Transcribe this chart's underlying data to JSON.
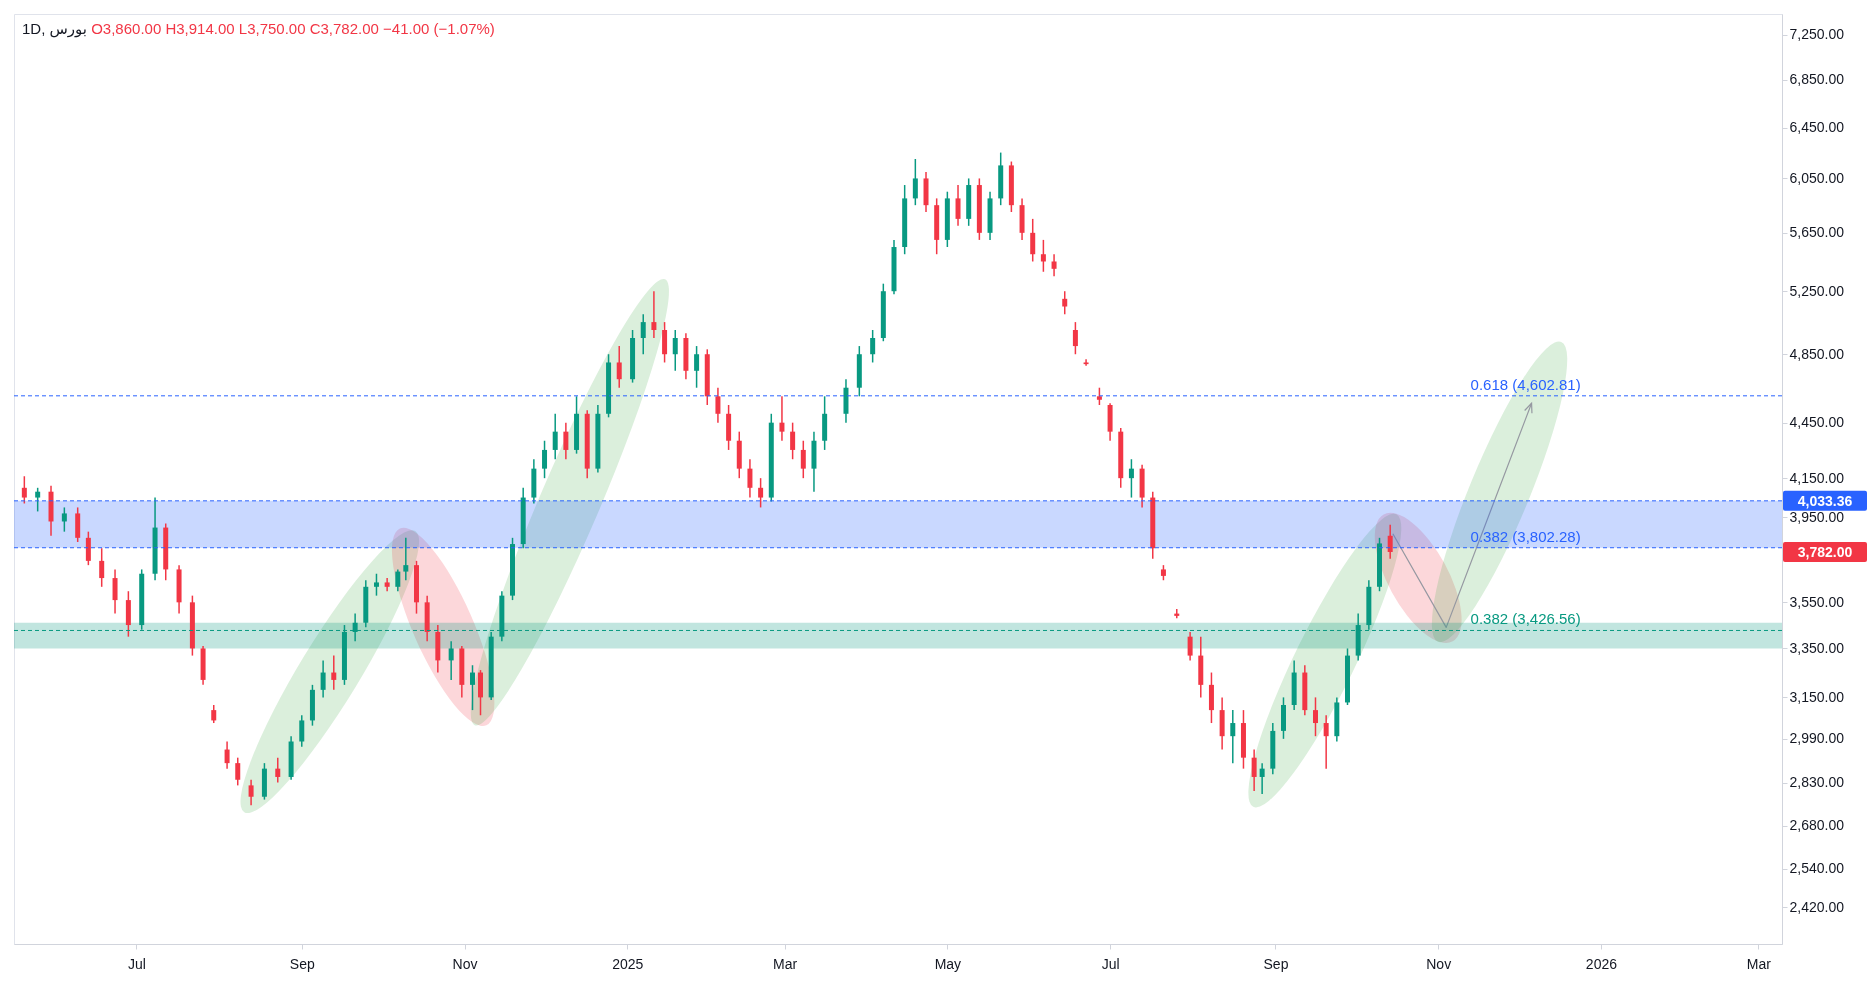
{
  "chart_data": {
    "type": "candlestick",
    "title": "1D, بورس",
    "annotations": [
      "O3,860.00 H3,914.00 L3,750.00 C3,782.00 −41.00 (−1.07%)",
      "4,033.36",
      "3,782.00"
    ],
    "x": [
      "2024-05-20",
      "2024-05-25",
      "2024-05-30",
      "2024-06-04",
      "2024-06-09",
      "2024-06-13",
      "2024-06-18",
      "2024-06-23",
      "2024-06-28",
      "2024-07-03",
      "2024-07-08",
      "2024-07-12",
      "2024-07-17",
      "2024-07-22",
      "2024-07-26",
      "2024-07-30",
      "2024-08-04",
      "2024-08-08",
      "2024-08-13",
      "2024-08-18",
      "2024-08-23",
      "2024-08-28",
      "2024-09-01",
      "2024-09-05",
      "2024-09-09",
      "2024-09-13",
      "2024-09-17",
      "2024-09-21",
      "2024-09-25",
      "2024-09-29",
      "2024-10-03",
      "2024-10-07",
      "2024-10-10",
      "2024-10-14",
      "2024-10-18",
      "2024-10-22",
      "2024-10-27",
      "2024-10-31",
      "2024-11-04",
      "2024-11-07",
      "2024-11-11",
      "2024-11-15",
      "2024-11-19",
      "2024-11-23",
      "2024-11-27",
      "2024-12-01",
      "2024-12-05",
      "2024-12-09",
      "2024-12-13",
      "2024-12-17",
      "2024-12-21",
      "2024-12-25",
      "2024-12-29",
      "2025-01-03",
      "2025-01-07",
      "2025-01-11",
      "2025-01-15",
      "2025-01-19",
      "2025-01-23",
      "2025-01-27",
      "2025-01-31",
      "2025-02-04",
      "2025-02-08",
      "2025-02-12",
      "2025-02-16",
      "2025-02-20",
      "2025-02-24",
      "2025-02-28",
      "2025-03-04",
      "2025-03-08",
      "2025-03-12",
      "2025-03-16",
      "2025-03-24",
      "2025-03-29",
      "2025-04-03",
      "2025-04-07",
      "2025-04-11",
      "2025-04-15",
      "2025-04-19",
      "2025-04-23",
      "2025-04-27",
      "2025-05-01",
      "2025-05-05",
      "2025-05-09",
      "2025-05-13",
      "2025-05-17",
      "2025-05-21",
      "2025-05-25",
      "2025-05-29",
      "2025-06-02",
      "2025-06-06",
      "2025-06-10",
      "2025-06-14",
      "2025-06-18",
      "2025-06-22",
      "2025-06-27",
      "2025-07-01",
      "2025-07-05",
      "2025-07-09",
      "2025-07-13",
      "2025-07-17",
      "2025-07-21",
      "2025-07-26",
      "2025-07-31",
      "2025-08-04",
      "2025-08-08",
      "2025-08-12",
      "2025-08-16",
      "2025-08-20",
      "2025-08-24",
      "2025-08-27",
      "2025-08-31",
      "2025-09-04",
      "2025-09-08",
      "2025-09-12",
      "2025-09-16",
      "2025-09-20",
      "2025-09-24",
      "2025-09-28",
      "2025-10-02",
      "2025-10-06",
      "2025-10-10",
      "2025-10-14"
    ],
    "ohlc": [
      [
        4100,
        4160,
        4020,
        4050
      ],
      [
        4050,
        4100,
        3980,
        4080
      ],
      [
        4080,
        4110,
        3860,
        3930
      ],
      [
        3930,
        4000,
        3880,
        3970
      ],
      [
        3970,
        4000,
        3830,
        3850
      ],
      [
        3850,
        3880,
        3720,
        3740
      ],
      [
        3740,
        3800,
        3620,
        3660
      ],
      [
        3660,
        3700,
        3500,
        3560
      ],
      [
        3560,
        3600,
        3400,
        3450
      ],
      [
        3450,
        3700,
        3430,
        3680
      ],
      [
        3680,
        4050,
        3650,
        3900
      ],
      [
        3900,
        3920,
        3650,
        3700
      ],
      [
        3700,
        3720,
        3500,
        3550
      ],
      [
        3550,
        3580,
        3320,
        3350
      ],
      [
        3350,
        3360,
        3200,
        3220
      ],
      [
        3100,
        3120,
        3050,
        3060
      ],
      [
        2950,
        2980,
        2880,
        2900
      ],
      [
        2900,
        2920,
        2820,
        2840
      ],
      [
        2820,
        2840,
        2750,
        2780
      ],
      [
        2780,
        2900,
        2770,
        2880
      ],
      [
        2880,
        2920,
        2830,
        2850
      ],
      [
        2850,
        3000,
        2840,
        2980
      ],
      [
        2980,
        3080,
        2960,
        3060
      ],
      [
        3060,
        3200,
        3040,
        3180
      ],
      [
        3180,
        3300,
        3150,
        3250
      ],
      [
        3250,
        3320,
        3180,
        3220
      ],
      [
        3220,
        3450,
        3200,
        3420
      ],
      [
        3420,
        3500,
        3380,
        3460
      ],
      [
        3460,
        3650,
        3440,
        3620
      ],
      [
        3620,
        3680,
        3580,
        3640
      ],
      [
        3640,
        3660,
        3600,
        3620
      ],
      [
        3620,
        3700,
        3600,
        3690
      ],
      [
        3690,
        3850,
        3650,
        3720
      ],
      [
        3720,
        3740,
        3500,
        3550
      ],
      [
        3550,
        3580,
        3380,
        3420
      ],
      [
        3420,
        3450,
        3250,
        3300
      ],
      [
        3300,
        3380,
        3220,
        3350
      ],
      [
        3350,
        3360,
        3150,
        3200
      ],
      [
        3200,
        3280,
        3100,
        3250
      ],
      [
        3250,
        3260,
        3080,
        3150
      ],
      [
        3150,
        3420,
        3140,
        3400
      ],
      [
        3400,
        3600,
        3380,
        3580
      ],
      [
        3580,
        3850,
        3560,
        3820
      ],
      [
        3820,
        4100,
        3800,
        4050
      ],
      [
        4050,
        4250,
        4020,
        4200
      ],
      [
        4200,
        4350,
        4150,
        4300
      ],
      [
        4300,
        4500,
        4250,
        4400
      ],
      [
        4400,
        4450,
        4250,
        4300
      ],
      [
        4300,
        4600,
        4280,
        4500
      ],
      [
        4500,
        4520,
        4150,
        4200
      ],
      [
        4200,
        4550,
        4180,
        4500
      ],
      [
        4500,
        4850,
        4480,
        4800
      ],
      [
        4800,
        4900,
        4650,
        4700
      ],
      [
        4700,
        5000,
        4680,
        4950
      ],
      [
        4950,
        5100,
        4850,
        5050
      ],
      [
        5050,
        5250,
        4950,
        5000
      ],
      [
        5000,
        5050,
        4800,
        4850
      ],
      [
        4850,
        5000,
        4750,
        4950
      ],
      [
        4950,
        4980,
        4700,
        4750
      ],
      [
        4750,
        4900,
        4650,
        4850
      ],
      [
        4850,
        4880,
        4550,
        4600
      ],
      [
        4600,
        4650,
        4450,
        4500
      ],
      [
        4500,
        4550,
        4300,
        4350
      ],
      [
        4350,
        4400,
        4150,
        4200
      ],
      [
        4200,
        4250,
        4050,
        4100
      ],
      [
        4100,
        4150,
        4000,
        4050
      ],
      [
        4050,
        4500,
        4030,
        4450
      ],
      [
        4450,
        4600,
        4350,
        4400
      ],
      [
        4400,
        4450,
        4250,
        4300
      ],
      [
        4300,
        4350,
        4150,
        4200
      ],
      [
        4200,
        4400,
        4080,
        4350
      ],
      [
        4350,
        4600,
        4300,
        4500
      ],
      [
        4500,
        4700,
        4450,
        4650
      ],
      [
        4650,
        4900,
        4600,
        4850
      ],
      [
        4850,
        5000,
        4800,
        4950
      ],
      [
        4950,
        5300,
        4930,
        5250
      ],
      [
        5250,
        5600,
        5230,
        5550
      ],
      [
        5550,
        6000,
        5500,
        5900
      ],
      [
        5900,
        6200,
        5850,
        6050
      ],
      [
        6050,
        6100,
        5800,
        5850
      ],
      [
        5850,
        5900,
        5500,
        5600
      ],
      [
        5600,
        5950,
        5550,
        5900
      ],
      [
        5900,
        6000,
        5700,
        5750
      ],
      [
        5750,
        6050,
        5700,
        6000
      ],
      [
        6000,
        6050,
        5600,
        5650
      ],
      [
        5650,
        5950,
        5600,
        5900
      ],
      [
        5900,
        6250,
        5850,
        6150
      ],
      [
        6150,
        6180,
        5800,
        5850
      ],
      [
        5850,
        5900,
        5600,
        5650
      ],
      [
        5650,
        5750,
        5450,
        5500
      ],
      [
        5500,
        5600,
        5380,
        5450
      ],
      [
        5450,
        5500,
        5350,
        5400
      ],
      [
        5200,
        5250,
        5100,
        5150
      ],
      [
        5000,
        5050,
        4850,
        4900
      ],
      [
        4800,
        4820,
        4780,
        4790
      ],
      [
        4600,
        4650,
        4550,
        4580
      ],
      [
        4550,
        4560,
        4350,
        4400
      ],
      [
        4400,
        4420,
        4100,
        4150
      ],
      [
        4150,
        4250,
        4050,
        4200
      ],
      [
        4200,
        4220,
        4000,
        4050
      ],
      [
        4050,
        4080,
        3750,
        3800
      ],
      [
        3700,
        3720,
        3650,
        3670
      ],
      [
        3500,
        3520,
        3480,
        3490
      ],
      [
        3400,
        3420,
        3300,
        3320
      ],
      [
        3320,
        3400,
        3150,
        3200
      ],
      [
        3200,
        3250,
        3050,
        3100
      ],
      [
        3100,
        3150,
        2950,
        3000
      ],
      [
        3000,
        3100,
        2900,
        3050
      ],
      [
        3050,
        3100,
        2880,
        2920
      ],
      [
        2920,
        2950,
        2800,
        2850
      ],
      [
        2850,
        2900,
        2790,
        2880
      ],
      [
        2880,
        3050,
        2860,
        3020
      ],
      [
        3020,
        3150,
        2990,
        3120
      ],
      [
        3120,
        3300,
        3100,
        3250
      ],
      [
        3250,
        3280,
        3080,
        3100
      ],
      [
        3100,
        3150,
        3000,
        3050
      ],
      [
        3050,
        3080,
        2880,
        3000
      ],
      [
        3000,
        3150,
        2980,
        3130
      ],
      [
        3130,
        3350,
        3120,
        3320
      ],
      [
        3320,
        3500,
        3300,
        3450
      ],
      [
        3450,
        3650,
        3430,
        3620
      ],
      [
        3620,
        3850,
        3600,
        3823
      ],
      [
        3860,
        3914,
        3750,
        3782
      ]
    ],
    "colors": [
      "#f23645",
      "#089981",
      "#f23645",
      "#089981",
      "#f23645",
      "#f23645",
      "#f23645",
      "#f23645",
      "#f23645",
      "#089981",
      "#089981",
      "#f23645",
      "#f23645",
      "#f23645",
      "#f23645",
      "#f23645",
      "#f23645",
      "#f23645",
      "#f23645",
      "#089981",
      "#f23645",
      "#089981",
      "#089981",
      "#089981",
      "#089981",
      "#f23645",
      "#089981",
      "#089981",
      "#089981",
      "#089981",
      "#f23645",
      "#089981",
      "#089981",
      "#f23645",
      "#f23645",
      "#f23645",
      "#089981",
      "#f23645",
      "#089981",
      "#f23645",
      "#089981",
      "#089981",
      "#089981",
      "#089981",
      "#089981",
      "#089981",
      "#089981",
      "#f23645",
      "#089981",
      "#f23645",
      "#089981",
      "#089981",
      "#f23645",
      "#089981",
      "#089981",
      "#f23645",
      "#f23645",
      "#089981",
      "#f23645",
      "#089981",
      "#f23645",
      "#f23645",
      "#f23645",
      "#f23645",
      "#f23645",
      "#f23645",
      "#089981",
      "#f23645",
      "#f23645",
      "#f23645",
      "#089981",
      "#089981",
      "#089981",
      "#089981",
      "#089981",
      "#089981",
      "#089981",
      "#089981",
      "#089981",
      "#f23645",
      "#f23645",
      "#089981",
      "#f23645",
      "#089981",
      "#f23645",
      "#089981",
      "#089981",
      "#f23645",
      "#f23645",
      "#f23645",
      "#f23645",
      "#f23645",
      "#f23645",
      "#f23645",
      "#f23645",
      "#f23645",
      "#f23645",
      "#f23645",
      "#089981",
      "#f23645",
      "#f23645",
      "#f23645",
      "#f23645",
      "#f23645",
      "#f23645",
      "#f23645",
      "#f23645",
      "#089981",
      "#f23645",
      "#f23645",
      "#089981",
      "#089981",
      "#089981",
      "#089981",
      "#f23645",
      "#f23645",
      "#f23645",
      "#089981",
      "#089981",
      "#089981",
      "#089981",
      "#089981",
      "#f23645"
    ],
    "log": "y",
    "xlim": [
      "2024-05-18",
      "2026-03-08"
    ],
    "xticks": [
      {
        "value": "2024-07-01",
        "label": "Jul"
      },
      {
        "value": "2024-09-01",
        "label": "Sep"
      },
      {
        "value": "2024-11-01",
        "label": "Nov"
      },
      {
        "value": "2025-01-01",
        "label": "2025"
      },
      {
        "value": "2025-03-01",
        "label": "Mar"
      },
      {
        "value": "2025-05-01",
        "label": "May"
      },
      {
        "value": "2025-07-01",
        "label": "Jul"
      },
      {
        "value": "2025-09-01",
        "label": "Sep"
      },
      {
        "value": "2025-11-01",
        "label": "Nov"
      },
      {
        "value": "2026-01-01",
        "label": "2026"
      },
      {
        "value": "2026-03-01",
        "label": "Mar"
      }
    ],
    "ylim": [
      2310,
      7440
    ],
    "yticks": [
      {
        "value": 2420,
        "label": "2,420.00"
      },
      {
        "value": 2540,
        "label": "2,540.00"
      },
      {
        "value": 2680,
        "label": "2,680.00"
      },
      {
        "value": 2830,
        "label": "2,830.00"
      },
      {
        "value": 2990,
        "label": "2,990.00"
      },
      {
        "value": 3150,
        "label": "3,150.00"
      },
      {
        "value": 3350,
        "label": "3,350.00"
      },
      {
        "value": 3550,
        "label": "3,550.00"
      },
      {
        "value": 3950,
        "label": "3,950.00"
      },
      {
        "value": 4150,
        "label": "4,150.00"
      },
      {
        "value": 4450,
        "label": "4,450.00"
      },
      {
        "value": 4850,
        "label": "4,850.00"
      },
      {
        "value": 5250,
        "label": "5,250.00"
      },
      {
        "value": 5650,
        "label": "5,650.00"
      },
      {
        "value": 6050,
        "label": "6,050.00"
      },
      {
        "value": 6450,
        "label": "6,450.00"
      },
      {
        "value": 6850,
        "label": "6,850.00"
      },
      {
        "value": 7250,
        "label": "7,250.00"
      }
    ],
    "ref_lines": [
      {
        "axis": "y",
        "value": 4033.36,
        "color": "#2962ff",
        "line_style": "dashed"
      },
      {
        "axis": "y",
        "value": 4602.81,
        "label": "0.618 (4,602.81)",
        "color": "#2962ff",
        "line_style": "dashed"
      },
      {
        "axis": "y",
        "value": 3802.28,
        "label": "0.382 (3,802.28)",
        "color": "#2962ff",
        "line_style": "dashed"
      },
      {
        "axis": "y",
        "value": 3426.56,
        "label": "0.382 (3,426.56)",
        "color": "#089981",
        "line_style": "dashed"
      }
    ],
    "bands": [
      {
        "axis": "y",
        "from": 3802.28,
        "to": 4033.36,
        "color": "#2962ff"
      },
      {
        "axis": "y",
        "from": 3350,
        "to": 3460,
        "color": "#089981"
      }
    ]
  }
}
